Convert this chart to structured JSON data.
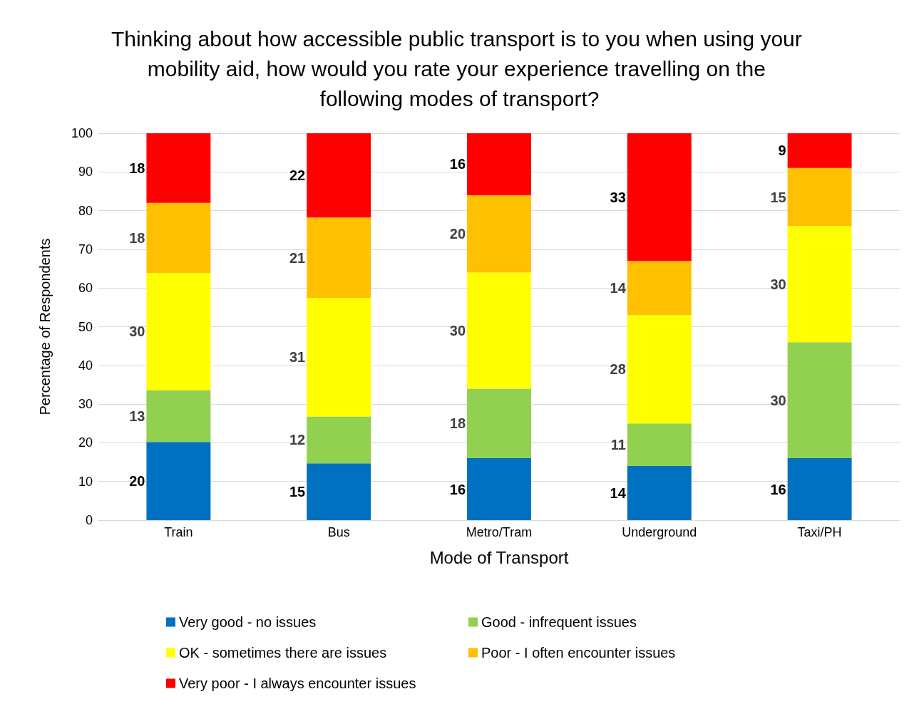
{
  "chart_data": {
    "type": "bar",
    "title": "Thinking about how accessible public transport is to you when using your mobility aid, how would you rate your experience travelling on the following modes of transport?",
    "xlabel": "Mode of Transport",
    "ylabel": "Percentage of Respondents",
    "categories": [
      "Train",
      "Bus",
      "Metro/Tram",
      "Underground",
      "Taxi/PH"
    ],
    "series": [
      {
        "name": "Very good - no issues",
        "color": "#0070c0",
        "values": [
          20.2,
          14.7,
          16,
          14,
          16
        ],
        "value_labels": [
          "20",
          "15",
          "16",
          "14",
          "16"
        ]
      },
      {
        "name": "Good - infrequent issues",
        "color": "#92d050",
        "values": [
          13.4,
          12.1,
          18,
          11,
          30
        ],
        "value_labels": [
          "13",
          "12",
          "18",
          "11",
          "30"
        ]
      },
      {
        "name": "OK - sometimes there are issues",
        "color": "#ffff00",
        "values": [
          30.3,
          30.6,
          30,
          28,
          30
        ],
        "value_labels": [
          "30",
          "31",
          "30",
          "28",
          "30"
        ]
      },
      {
        "name": "Poor - I often encounter issues",
        "color": "#ffc000",
        "values": [
          18.1,
          20.8,
          20,
          14,
          15
        ],
        "value_labels": [
          "18",
          "21",
          "20",
          "14",
          "15"
        ]
      },
      {
        "name": "Very poor - I always encounter issues",
        "color": "#ff0000",
        "values": [
          18,
          21.8,
          16,
          33,
          9
        ],
        "value_labels": [
          "18",
          "22",
          "16",
          "33",
          "9"
        ]
      }
    ],
    "stacked": true,
    "ylim": [
      0,
      100
    ],
    "yticks": [
      0,
      10,
      20,
      30,
      40,
      50,
      60,
      70,
      80,
      90,
      100
    ],
    "grid": "y",
    "legend": "bottom"
  }
}
